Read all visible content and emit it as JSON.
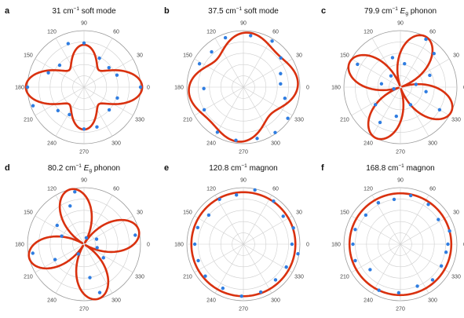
{
  "figure": {
    "angle_ticks": [
      "0",
      "30",
      "60",
      "90",
      "120",
      "150",
      "180",
      "210",
      "240",
      "270",
      "300",
      "330"
    ],
    "colors": {
      "fit": "#d9310f",
      "data": "#2f7de1",
      "grid": "#cfcfcf",
      "frame": "#9a9a9a"
    }
  },
  "chart_data": [
    {
      "type": "polar",
      "panel": "a",
      "title": {
        "value": "31 cm",
        "sup": "−1",
        "rest": " soft mode"
      },
      "theta_unit": "degrees",
      "rlim": [
        0,
        1
      ],
      "grid": true,
      "fit": {
        "model": "a + b*cos(2θ) + c*cos(4θ)",
        "a": 0.65,
        "b": 0.14,
        "c": 0.24
      },
      "points": [
        [
          0,
          1.0
        ],
        [
          20,
          0.62
        ],
        [
          38,
          0.56
        ],
        [
          62,
          0.58
        ],
        [
          90,
          0.78
        ],
        [
          110,
          0.82
        ],
        [
          138,
          0.58
        ],
        [
          158,
          0.68
        ],
        [
          180,
          1.0
        ],
        [
          200,
          0.96
        ],
        [
          222,
          0.62
        ],
        [
          242,
          0.55
        ],
        [
          270,
          0.74
        ],
        [
          288,
          0.74
        ],
        [
          318,
          0.6
        ],
        [
          342,
          0.62
        ]
      ]
    },
    {
      "type": "polar",
      "panel": "b",
      "title": {
        "value": "37.5 cm",
        "sup": "−1",
        "rest": " soft mode"
      },
      "theta_unit": "degrees",
      "rlim": [
        0,
        1
      ],
      "grid": true,
      "fit": {
        "model": "a + b*cos(2θ - 90°) + c*cos(4θ)",
        "a": 0.86,
        "b": 0.08,
        "c": 0.1
      },
      "points": [
        [
          5,
          0.66
        ],
        [
          20,
          0.7
        ],
        [
          38,
          0.84
        ],
        [
          58,
          0.96
        ],
        [
          82,
          0.92
        ],
        [
          110,
          0.93
        ],
        [
          132,
          0.84
        ],
        [
          152,
          0.88
        ],
        [
          182,
          0.7
        ],
        [
          210,
          0.8
        ],
        [
          240,
          0.92
        ],
        [
          262,
          0.95
        ],
        [
          285,
          0.94
        ],
        [
          305,
          0.98
        ],
        [
          325,
          0.96
        ],
        [
          345,
          0.76
        ]
      ]
    },
    {
      "type": "polar",
      "panel": "c",
      "title": {
        "value": "79.9 cm",
        "sup": "−1",
        "rest": " ",
        "ital": "E",
        "sub": "g",
        "tail": " phonon"
      },
      "theta_unit": "degrees",
      "rlim": [
        0,
        1
      ],
      "grid": true,
      "fit": {
        "model": "|cos(2θ - 2·64°)|",
        "phase_deg": 64
      },
      "points": [
        [
          10,
          0.28
        ],
        [
          22,
          0.56
        ],
        [
          45,
          0.84
        ],
        [
          62,
          0.96
        ],
        [
          80,
          0.42
        ],
        [
          105,
          0.54
        ],
        [
          130,
          0.26
        ],
        [
          152,
          0.86
        ],
        [
          170,
          0.34
        ],
        [
          195,
          0.12
        ],
        [
          215,
          0.54
        ],
        [
          240,
          0.72
        ],
        [
          262,
          0.52
        ],
        [
          300,
          0.36
        ],
        [
          330,
          0.8
        ],
        [
          350,
          0.46
        ]
      ]
    },
    {
      "type": "polar",
      "panel": "d",
      "title": {
        "value": "80.2 cm",
        "sup": "−1",
        "rest": " ",
        "ital": "E",
        "sub": "g",
        "tail": " phonon"
      },
      "theta_unit": "degrees",
      "rlim": [
        0,
        1
      ],
      "grid": true,
      "fit": {
        "model": "|cos(2θ - 2·104°)|",
        "phase_deg": 104
      },
      "points": [
        [
          10,
          0.92
        ],
        [
          22,
          0.24
        ],
        [
          70,
          0.12
        ],
        [
          100,
          0.94
        ],
        [
          110,
          0.72
        ],
        [
          145,
          0.58
        ],
        [
          160,
          0.42
        ],
        [
          190,
          0.92
        ],
        [
          208,
          0.58
        ],
        [
          240,
          0.2
        ],
        [
          280,
          0.6
        ],
        [
          288,
          0.9
        ],
        [
          325,
          0.42
        ],
        [
          345,
          0.24
        ]
      ]
    },
    {
      "type": "polar",
      "panel": "e",
      "title": {
        "value": "120.8 cm",
        "sup": "−1",
        "rest": " magnon"
      },
      "theta_unit": "degrees",
      "rlim": [
        0,
        1
      ],
      "grid": true,
      "fit": {
        "model": "constant",
        "r": 0.92
      },
      "points": [
        [
          0,
          0.86
        ],
        [
          18,
          0.93
        ],
        [
          35,
          0.86
        ],
        [
          55,
          0.93
        ],
        [
          78,
          0.98
        ],
        [
          98,
          0.88
        ],
        [
          118,
          0.9
        ],
        [
          140,
          0.8
        ],
        [
          160,
          0.86
        ],
        [
          180,
          0.86
        ],
        [
          200,
          0.85
        ],
        [
          220,
          0.88
        ],
        [
          245,
          0.86
        ],
        [
          268,
          0.92
        ],
        [
          290,
          0.9
        ],
        [
          312,
          0.85
        ],
        [
          332,
          0.86
        ],
        [
          350,
          0.98
        ]
      ]
    },
    {
      "type": "polar",
      "panel": "f",
      "title": {
        "value": "168.8 cm",
        "sup": "−1",
        "rest": " magnon"
      },
      "theta_unit": "degrees",
      "rlim": [
        0,
        1
      ],
      "grid": true,
      "fit": {
        "model": "constant",
        "r": 0.9
      },
      "points": [
        [
          0,
          0.84
        ],
        [
          15,
          0.9
        ],
        [
          33,
          0.8
        ],
        [
          55,
          0.86
        ],
        [
          78,
          0.88
        ],
        [
          98,
          0.8
        ],
        [
          118,
          0.83
        ],
        [
          140,
          0.8
        ],
        [
          162,
          0.84
        ],
        [
          180,
          0.84
        ],
        [
          200,
          0.85
        ],
        [
          220,
          0.7
        ],
        [
          245,
          0.9
        ],
        [
          268,
          0.86
        ],
        [
          292,
          0.8
        ],
        [
          312,
          0.85
        ],
        [
          332,
          0.82
        ],
        [
          350,
          0.82
        ]
      ]
    }
  ]
}
